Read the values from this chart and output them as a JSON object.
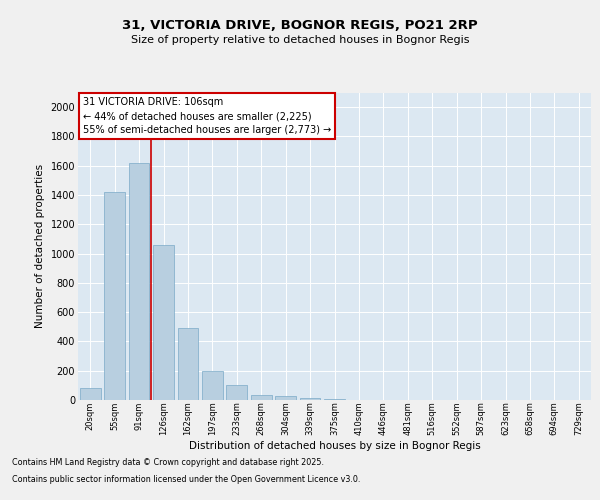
{
  "title1": "31, VICTORIA DRIVE, BOGNOR REGIS, PO21 2RP",
  "title2": "Size of property relative to detached houses in Bognor Regis",
  "xlabel": "Distribution of detached houses by size in Bognor Regis",
  "ylabel": "Number of detached properties",
  "categories": [
    "20sqm",
    "55sqm",
    "91sqm",
    "126sqm",
    "162sqm",
    "197sqm",
    "233sqm",
    "268sqm",
    "304sqm",
    "339sqm",
    "375sqm",
    "410sqm",
    "446sqm",
    "481sqm",
    "516sqm",
    "552sqm",
    "587sqm",
    "623sqm",
    "658sqm",
    "694sqm",
    "729sqm"
  ],
  "values": [
    80,
    1420,
    1620,
    1060,
    490,
    200,
    105,
    35,
    25,
    15,
    10,
    3,
    0,
    0,
    0,
    0,
    0,
    0,
    0,
    0,
    0
  ],
  "bar_color": "#b8cfe0",
  "bar_edge_color": "#7aaac8",
  "bg_color": "#dce8f2",
  "grid_color": "#ffffff",
  "red_line_x": 2.5,
  "annotation_text": "31 VICTORIA DRIVE: 106sqm\n← 44% of detached houses are smaller (2,225)\n55% of semi-detached houses are larger (2,773) →",
  "annotation_box_color": "#ffffff",
  "annotation_box_edge": "#cc0000",
  "ylim": [
    0,
    2100
  ],
  "yticks": [
    0,
    200,
    400,
    600,
    800,
    1000,
    1200,
    1400,
    1600,
    1800,
    2000
  ],
  "fig_bg": "#f0f0f0",
  "footer1": "Contains HM Land Registry data © Crown copyright and database right 2025.",
  "footer2": "Contains public sector information licensed under the Open Government Licence v3.0."
}
